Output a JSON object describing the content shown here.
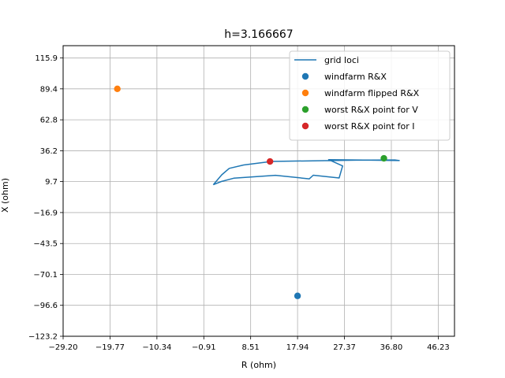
{
  "chart_data": {
    "type": "scatter",
    "title": "h=3.166667",
    "xlabel": "R (ohm)",
    "ylabel": "X (ohm)",
    "xlim": [
      -29.2,
      49.5
    ],
    "ylim": [
      -123.2,
      126.5
    ],
    "x_ticks": [
      "−29.20",
      "−19.77",
      "−10.34",
      "−0.91",
      "8.51",
      "17.94",
      "27.37",
      "36.80",
      "46.23"
    ],
    "x_tick_values": [
      -29.2,
      -19.77,
      -10.34,
      -0.91,
      8.51,
      17.94,
      27.37,
      36.8,
      46.23
    ],
    "y_ticks": [
      "115.9",
      "89.4",
      "62.8",
      "36.2",
      "9.7",
      "−16.9",
      "−43.5",
      "−70.1",
      "−96.6",
      "−123.2"
    ],
    "y_tick_values": [
      115.9,
      89.4,
      62.8,
      36.2,
      9.7,
      -16.9,
      -43.5,
      -70.1,
      -96.6,
      -123.2
    ],
    "grid": true,
    "legend_position": "top-right",
    "series": [
      {
        "name": "grid loci",
        "kind": "line",
        "color": "#1f77b4",
        "x": [
          1.0,
          2.6,
          5.1,
          13.5,
          20.3,
          21.1,
          26.3,
          27.0,
          24.2,
          31.2,
          38.4,
          37.5,
          29.7,
          12.7,
          7.1,
          4.2,
          2.7,
          1.0
        ],
        "y": [
          7.0,
          9.8,
          12.6,
          15.1,
          12.1,
          15.2,
          12.8,
          23.2,
          28.6,
          28.2,
          27.8,
          28.3,
          28.1,
          27.0,
          24.0,
          21.1,
          15.5,
          7.0
        ]
      },
      {
        "name": "windfarm R&X",
        "kind": "point",
        "color": "#1f77b4",
        "x": [
          17.94
        ],
        "y": [
          -88.5
        ]
      },
      {
        "name": "windfarm flipped R&X",
        "kind": "point",
        "color": "#ff7f0e",
        "x": [
          -18.3
        ],
        "y": [
          89.4
        ]
      },
      {
        "name": "worst R&X point for V",
        "kind": "point",
        "color": "#2ca02c",
        "x": [
          35.3
        ],
        "y": [
          29.7
        ]
      },
      {
        "name": "worst R&X point for I",
        "kind": "point",
        "color": "#d62728",
        "x": [
          12.4
        ],
        "y": [
          27.0
        ]
      }
    ]
  }
}
